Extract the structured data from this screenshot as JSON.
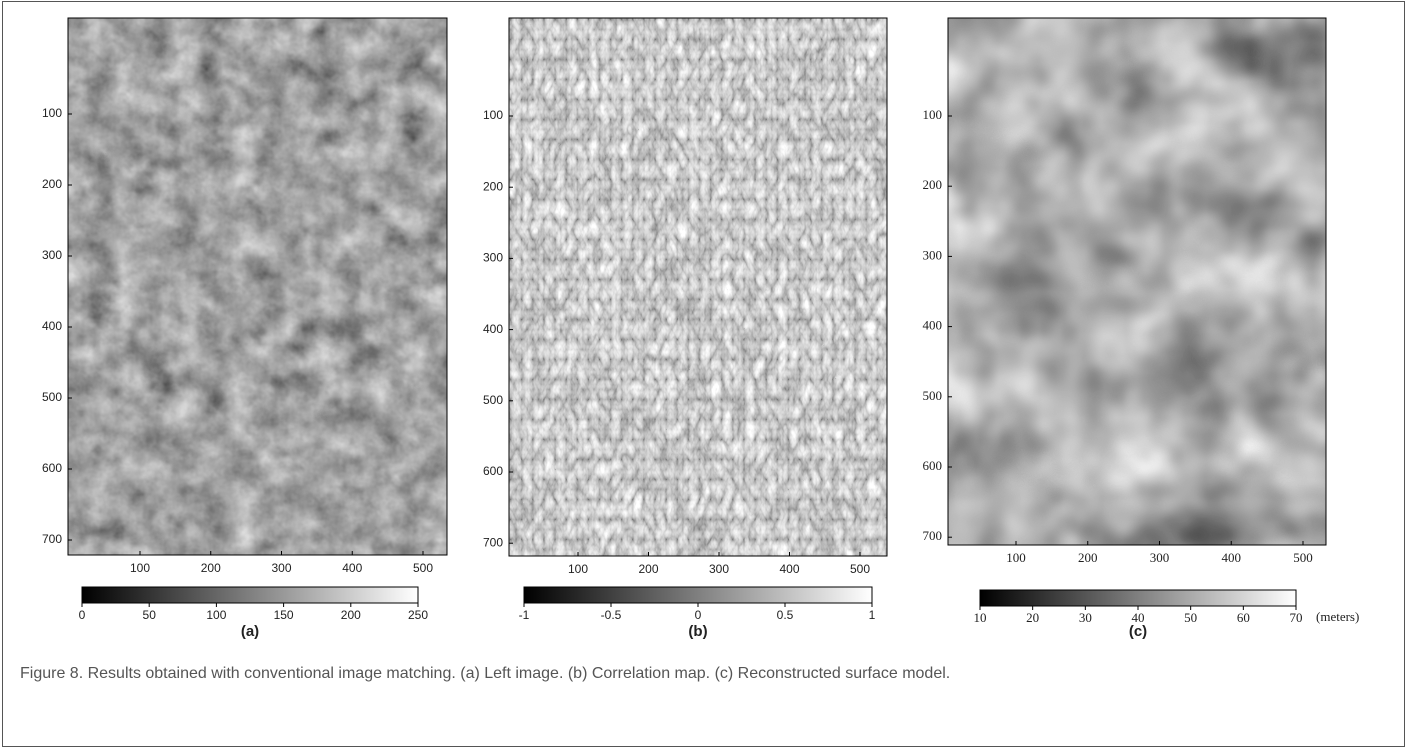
{
  "panels": [
    {
      "yticks": [
        100,
        200,
        300,
        400,
        500,
        600,
        700
      ],
      "xticks": [
        100,
        200,
        300,
        400,
        500
      ],
      "colorbar": [
        0,
        50,
        100,
        150,
        200,
        250
      ],
      "label": "(a)"
    },
    {
      "yticks": [
        100,
        200,
        300,
        400,
        500,
        600,
        700
      ],
      "xticks": [
        100,
        200,
        300,
        400,
        500
      ],
      "colorbar": [
        -1,
        -0.5,
        0,
        0.5,
        1
      ],
      "label": "(b)"
    },
    {
      "yticks": [
        100,
        200,
        300,
        400,
        500,
        600,
        700
      ],
      "xticks": [
        100,
        200,
        300,
        400,
        500
      ],
      "colorbar": [
        10,
        20,
        30,
        40,
        50,
        60,
        70
      ],
      "label": "(c)",
      "unit": "(meters)"
    }
  ],
  "caption": "Figure 8.  Results obtained with conventional image matching. (a) Left image. (b) Correlation map. (c) Reconstructed surface model."
}
